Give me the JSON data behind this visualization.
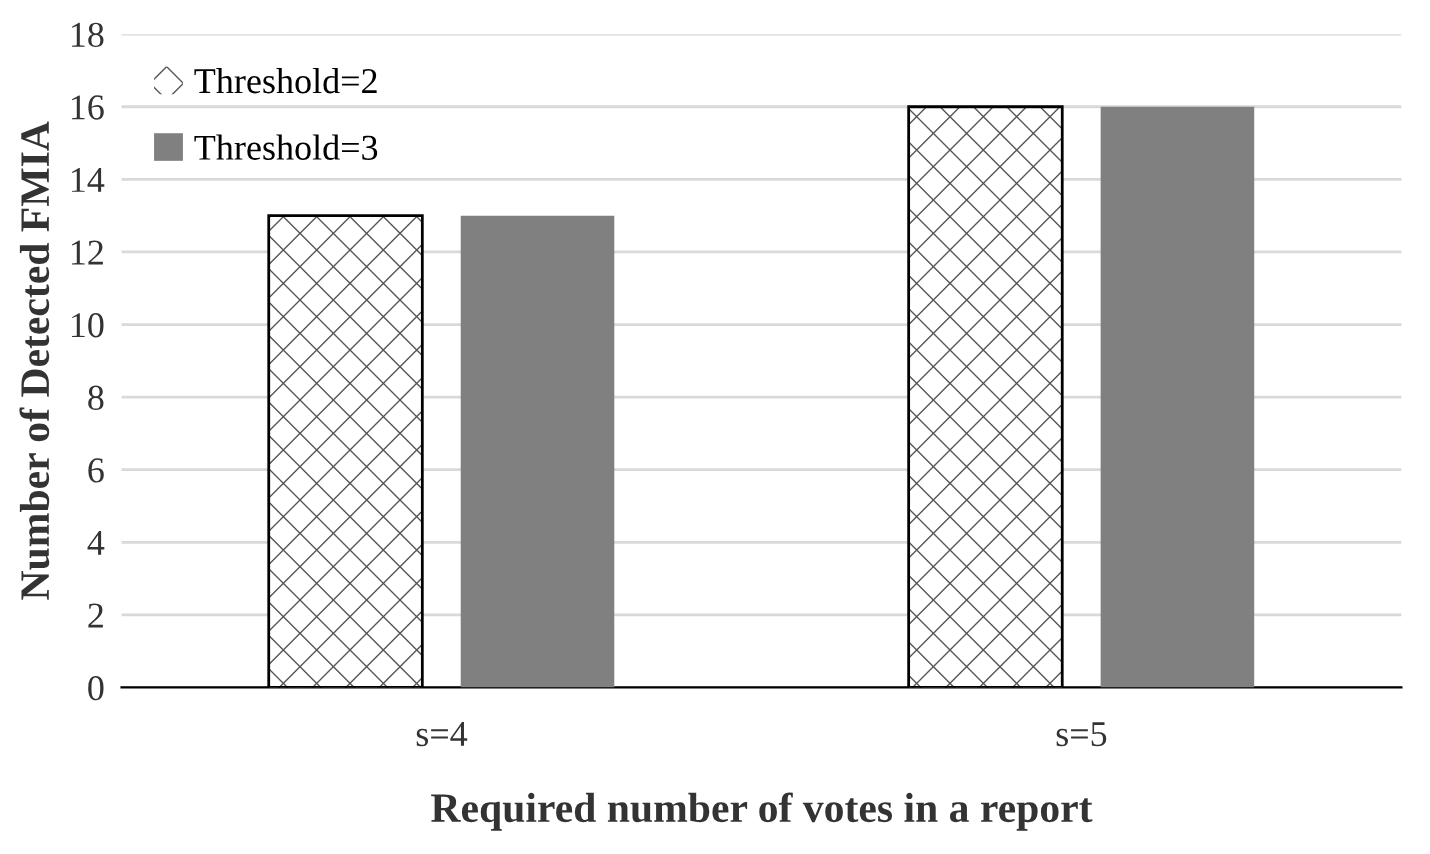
{
  "chart_data": {
    "type": "bar",
    "xlabel": "Required number of votes in a report",
    "ylabel": "Number of Detected FMIA",
    "categories": [
      "s=4",
      "s=5"
    ],
    "series": [
      {
        "name": "Threshold=2",
        "color": "#ffffff",
        "values": [
          13,
          16
        ]
      },
      {
        "name": "Threshold=3",
        "color": "#808080",
        "values": [
          13,
          16
        ]
      }
    ],
    "ylim": [
      0,
      18
    ],
    "yticks": [
      0,
      2,
      4,
      6,
      8,
      10,
      12,
      14,
      16,
      18
    ],
    "grid": "y",
    "legend": "top left"
  }
}
